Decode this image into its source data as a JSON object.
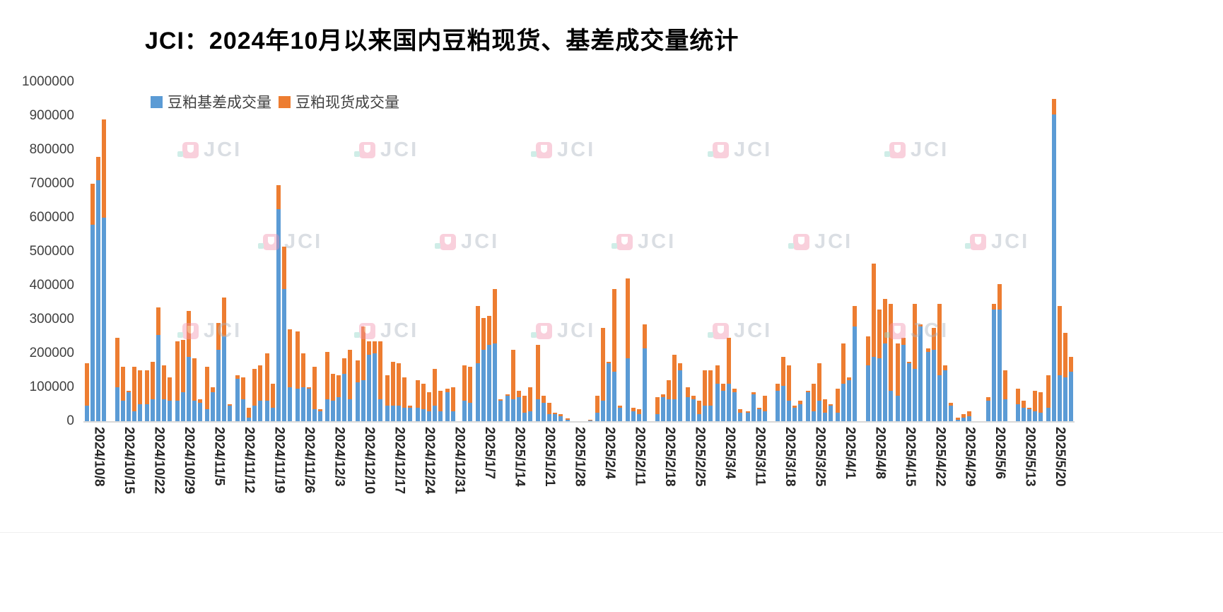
{
  "title": "JCI：2024年10月以来国内豆粕现货、基差成交量统计",
  "watermark": {
    "text": "JCI"
  },
  "chart_data": {
    "type": "bar",
    "stacked": true,
    "title": "JCI：2024年10月以来国内豆粕现货、基差成交量统计",
    "xlabel": "",
    "ylabel": "",
    "ylim": [
      0,
      1000000
    ],
    "y_ticks": [
      0,
      100000,
      200000,
      300000,
      400000,
      500000,
      600000,
      700000,
      800000,
      900000,
      1000000
    ],
    "grid": false,
    "legend_position": "top-left",
    "bars_per_group": 5,
    "x_tick_labels": [
      "2024/10/8",
      "2024/10/15",
      "2024/10/22",
      "2024/10/29",
      "2024/11/5",
      "2024/11/12",
      "2024/11/19",
      "2024/11/26",
      "2024/12/3",
      "2024/12/10",
      "2024/12/17",
      "2024/12/24",
      "2024/12/31",
      "2025/1/7",
      "2025/1/14",
      "2025/1/21",
      "2025/1/28",
      "2025/2/4",
      "2025/2/11",
      "2025/2/18",
      "2025/2/25",
      "2025/3/4",
      "2025/3/11",
      "2025/3/18",
      "2025/3/25",
      "2025/4/1",
      "2025/4/8",
      "2025/4/15",
      "2025/4/22",
      "2025/4/29",
      "2025/5/6",
      "2025/5/13",
      "2025/5/20"
    ],
    "legend": [
      {
        "label": "豆粕基差成交量",
        "color": "#5B9BD5"
      },
      {
        "label": "豆粕现货成交量",
        "color": "#ED7D31"
      }
    ],
    "series": [
      {
        "name": "豆粕基差成交量",
        "color": "#5B9BD5",
        "values": [
          45000,
          580000,
          710000,
          600000,
          0,
          100000,
          60000,
          85000,
          30000,
          50000,
          50000,
          65000,
          255000,
          65000,
          60000,
          60000,
          85000,
          190000,
          60000,
          55000,
          35000,
          85000,
          210000,
          250000,
          45000,
          125000,
          65000,
          10000,
          45000,
          60000,
          60000,
          40000,
          625000,
          390000,
          100000,
          95000,
          100000,
          95000,
          35000,
          30000,
          65000,
          60000,
          70000,
          140000,
          65000,
          115000,
          120000,
          195000,
          200000,
          65000,
          45000,
          45000,
          45000,
          40000,
          40000,
          40000,
          35000,
          30000,
          45000,
          30000,
          85000,
          30000,
          0,
          60000,
          55000,
          170000,
          210000,
          225000,
          230000,
          60000,
          75000,
          65000,
          70000,
          25000,
          30000,
          65000,
          55000,
          20000,
          20000,
          15000,
          5000,
          0,
          0,
          0,
          3000,
          25000,
          60000,
          170000,
          145000,
          40000,
          185000,
          30000,
          20000,
          215000,
          0,
          20000,
          70000,
          65000,
          65000,
          150000,
          70000,
          65000,
          20000,
          45000,
          45000,
          110000,
          90000,
          110000,
          85000,
          25000,
          25000,
          80000,
          35000,
          30000,
          0,
          90000,
          105000,
          60000,
          40000,
          50000,
          85000,
          30000,
          60000,
          25000,
          45000,
          25000,
          110000,
          120000,
          280000,
          0,
          165000,
          190000,
          185000,
          230000,
          90000,
          75000,
          225000,
          170000,
          155000,
          280000,
          205000,
          210000,
          135000,
          150000,
          45000,
          5000,
          10000,
          15000,
          0,
          0,
          60000,
          330000,
          330000,
          65000,
          0,
          50000,
          40000,
          35000,
          30000,
          25000,
          40000,
          905000,
          135000,
          130000,
          145000
        ]
      },
      {
        "name": "豆粕现货成交量",
        "color": "#ED7D31",
        "values": [
          125000,
          120000,
          70000,
          290000,
          0,
          145000,
          100000,
          5000,
          130000,
          100000,
          100000,
          110000,
          80000,
          100000,
          70000,
          175000,
          155000,
          135000,
          125000,
          10000,
          125000,
          15000,
          80000,
          115000,
          5000,
          10000,
          65000,
          30000,
          110000,
          105000,
          140000,
          70000,
          70000,
          125000,
          170000,
          170000,
          100000,
          5000,
          125000,
          5000,
          140000,
          80000,
          65000,
          45000,
          145000,
          65000,
          160000,
          40000,
          35000,
          170000,
          90000,
          130000,
          125000,
          90000,
          5000,
          80000,
          75000,
          55000,
          110000,
          60000,
          10000,
          70000,
          0,
          105000,
          105000,
          170000,
          95000,
          85000,
          160000,
          5000,
          5000,
          145000,
          20000,
          50000,
          70000,
          160000,
          20000,
          35000,
          5000,
          5000,
          3000,
          0,
          0,
          0,
          2000,
          50000,
          215000,
          5000,
          245000,
          5000,
          235000,
          10000,
          15000,
          70000,
          0,
          50000,
          10000,
          55000,
          130000,
          20000,
          30000,
          10000,
          40000,
          105000,
          105000,
          55000,
          20000,
          135000,
          10000,
          10000,
          5000,
          5000,
          5000,
          45000,
          0,
          20000,
          85000,
          105000,
          5000,
          10000,
          5000,
          80000,
          110000,
          40000,
          5000,
          70000,
          120000,
          10000,
          60000,
          0,
          85000,
          275000,
          145000,
          130000,
          255000,
          155000,
          20000,
          5000,
          190000,
          5000,
          10000,
          65000,
          210000,
          15000,
          10000,
          5000,
          10000,
          15000,
          0,
          0,
          10000,
          15000,
          75000,
          85000,
          0,
          45000,
          20000,
          5000,
          60000,
          60000,
          95000,
          45000,
          205000,
          130000,
          45000
        ]
      }
    ]
  }
}
